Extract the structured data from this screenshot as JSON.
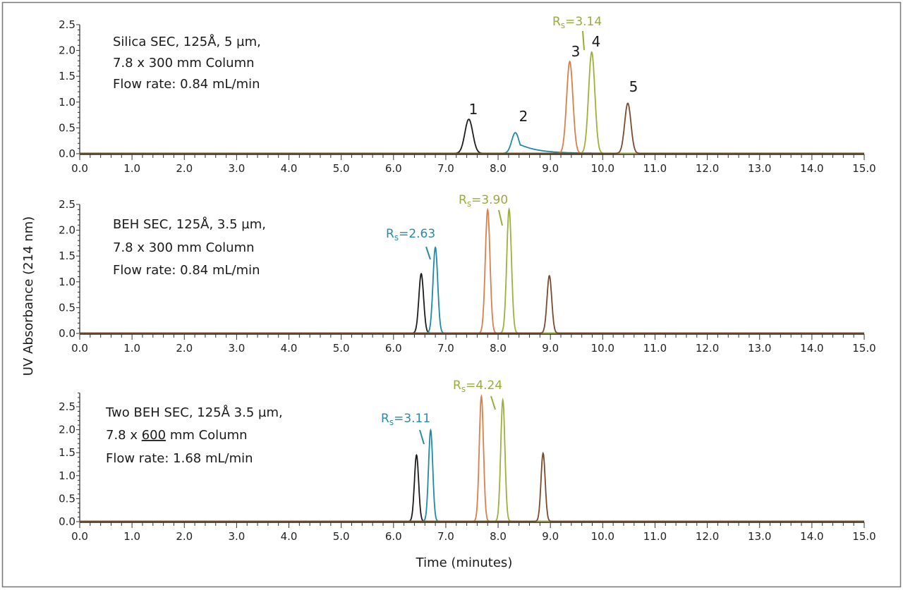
{
  "chart_data": {
    "type": "line",
    "xlabel": "Time (minutes)",
    "ylabel": "UV Absorbance (214 nm)",
    "xlim": [
      0,
      15
    ],
    "xticks": [
      "0.0",
      "1.0",
      "2.0",
      "3.0",
      "4.0",
      "5.0",
      "6.0",
      "7.0",
      "8.0",
      "9.0",
      "10.0",
      "11.0",
      "12.0",
      "13.0",
      "14.0",
      "15.0"
    ],
    "colors": {
      "peak1": "#1c1c1c",
      "peak2": "#1e8aa8",
      "peak3": "#d8804c",
      "peak4": "#9db03a",
      "peak5": "#7a4a2c",
      "rs_green": "#9aab3a",
      "rs_teal": "#2a8aa6"
    },
    "panels": [
      {
        "note": [
          "Silica SEC, 125Å, 5 µm,",
          "7.8 x 300 mm Column",
          "Flow rate: 0.84 mL/min"
        ],
        "ylim": [
          0,
          2.5
        ],
        "yticks": [
          "0.0",
          "0.5",
          "1.0",
          "1.5",
          "2.0",
          "2.5"
        ],
        "peak_labels": [
          "1",
          "2",
          "3",
          "4",
          "5"
        ],
        "resolution_labels": [
          {
            "text": "3.14",
            "color": "rs_green"
          }
        ],
        "series": [
          {
            "peak": "1",
            "color": "peak1",
            "retention_min": 7.44,
            "height": 0.66,
            "sigma": 0.075,
            "tail": 0.03
          },
          {
            "peak": "2",
            "color": "peak2",
            "retention_min": 8.33,
            "height": 0.4,
            "sigma": 0.07,
            "tail": 0.35
          },
          {
            "peak": "3",
            "color": "peak3",
            "retention_min": 9.37,
            "height": 1.78,
            "sigma": 0.06,
            "tail": 0.02
          },
          {
            "peak": "4",
            "color": "peak4",
            "retention_min": 9.79,
            "height": 1.96,
            "sigma": 0.06,
            "tail": 0.02
          },
          {
            "peak": "5",
            "color": "peak5",
            "retention_min": 10.48,
            "height": 0.97,
            "sigma": 0.06,
            "tail": 0.02
          }
        ]
      },
      {
        "note": [
          "BEH SEC, 125Å, 3.5 µm,",
          "7.8 x 300 mm Column",
          "Flow rate: 0.84 mL/min"
        ],
        "ylim": [
          0,
          2.5
        ],
        "yticks": [
          "0.0",
          "0.5",
          "1.0",
          "1.5",
          "2.0",
          "2.5"
        ],
        "resolution_labels": [
          {
            "text": "2.63",
            "color": "rs_teal"
          },
          {
            "text": "3.90",
            "color": "rs_green"
          }
        ],
        "series": [
          {
            "peak": "1",
            "color": "peak1",
            "retention_min": 6.53,
            "height": 1.15,
            "sigma": 0.045,
            "tail": 0.02
          },
          {
            "peak": "2",
            "color": "peak2",
            "retention_min": 6.8,
            "height": 1.66,
            "sigma": 0.045,
            "tail": 0.04
          },
          {
            "peak": "3",
            "color": "peak3",
            "retention_min": 7.8,
            "height": 2.39,
            "sigma": 0.045,
            "tail": 0.02
          },
          {
            "peak": "4",
            "color": "peak4",
            "retention_min": 8.21,
            "height": 2.4,
            "sigma": 0.045,
            "tail": 0.02
          },
          {
            "peak": "5",
            "color": "peak5",
            "retention_min": 8.98,
            "height": 1.11,
            "sigma": 0.045,
            "tail": 0.02
          }
        ]
      },
      {
        "note": [
          "Two BEH SEC, 125Å 3.5 µm,",
          "7.8 x ",
          "600",
          " mm Column",
          "Flow rate: 1.68 mL/min"
        ],
        "ylim": [
          0,
          2.5
        ],
        "yticks": [
          "0.0",
          "0.5",
          "1.0",
          "1.5",
          "2.0",
          "2.5"
        ],
        "resolution_labels": [
          {
            "text": "3.11",
            "color": "rs_teal"
          },
          {
            "text": "4.24",
            "color": "rs_green"
          }
        ],
        "series": [
          {
            "peak": "1",
            "color": "peak1",
            "retention_min": 6.44,
            "height": 1.44,
            "sigma": 0.04,
            "tail": 0.02
          },
          {
            "peak": "2",
            "color": "peak2",
            "retention_min": 6.71,
            "height": 1.98,
            "sigma": 0.04,
            "tail": 0.04
          },
          {
            "peak": "3",
            "color": "peak3",
            "retention_min": 7.68,
            "height": 2.72,
            "sigma": 0.04,
            "tail": 0.02
          },
          {
            "peak": "4",
            "color": "peak4",
            "retention_min": 8.09,
            "height": 2.64,
            "sigma": 0.04,
            "tail": 0.02
          },
          {
            "peak": "5",
            "color": "peak5",
            "retention_min": 8.86,
            "height": 1.48,
            "sigma": 0.04,
            "tail": 0.02
          }
        ]
      }
    ]
  }
}
